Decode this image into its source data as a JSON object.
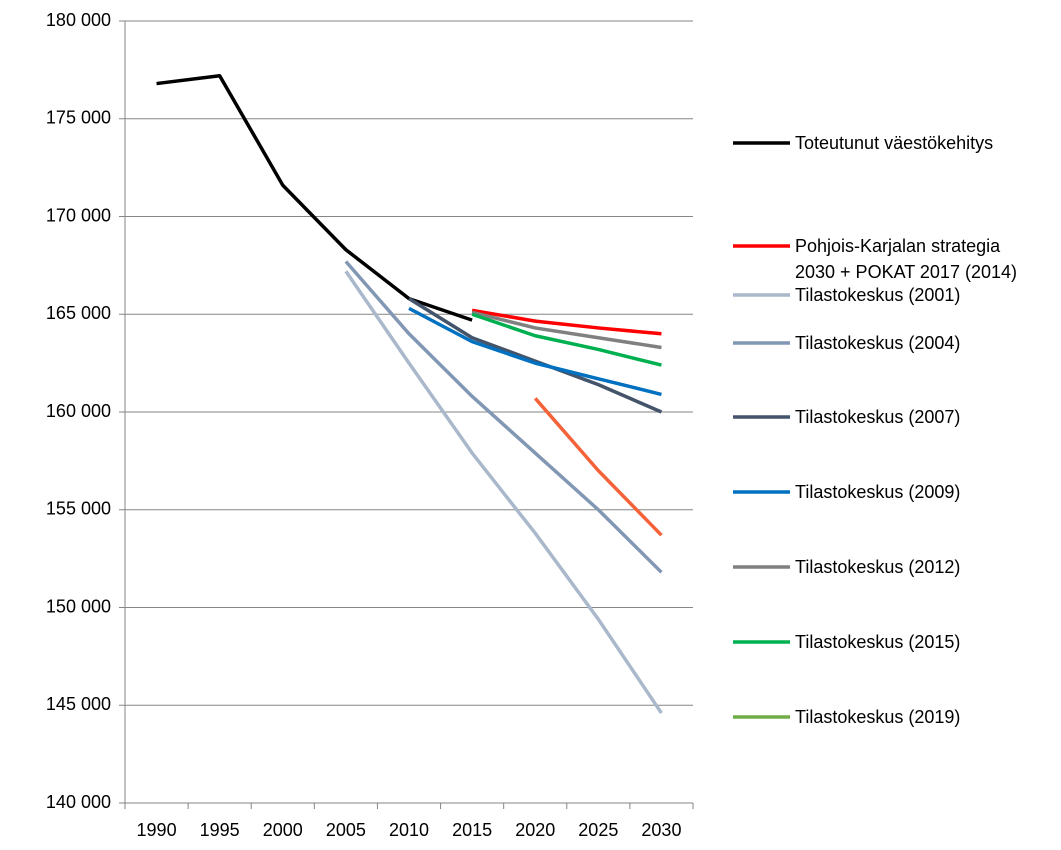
{
  "chart_data": {
    "type": "line",
    "categories": [
      "1990",
      "1995",
      "2000",
      "2005",
      "2010",
      "2015",
      "2020",
      "2025",
      "2030"
    ],
    "ylim": [
      140000,
      180000
    ],
    "yticks": [
      {
        "value": 140000,
        "label": "140 000"
      },
      {
        "value": 145000,
        "label": "145 000"
      },
      {
        "value": 150000,
        "label": "150 000"
      },
      {
        "value": 155000,
        "label": "155 000"
      },
      {
        "value": 160000,
        "label": "160 000"
      },
      {
        "value": 165000,
        "label": "165 000"
      },
      {
        "value": 170000,
        "label": "170 000"
      },
      {
        "value": 175000,
        "label": "175 000"
      },
      {
        "value": 180000,
        "label": "180 000"
      }
    ],
    "grid": true,
    "legend": "right",
    "series": [
      {
        "name": "Toteutunut väestökehitys",
        "color": "#000000",
        "values": [
          176800,
          177200,
          171600,
          168300,
          165800,
          164700,
          null,
          null,
          null
        ]
      },
      {
        "name": "Pohjois-Karjalan strategia\n2030 + POKAT 2017 (2014)",
        "color": "#ff0000",
        "values": [
          null,
          null,
          null,
          null,
          null,
          165200,
          164650,
          164300,
          164000
        ]
      },
      {
        "name": "Tilastokeskus (2001)",
        "color": "#a9b8cb",
        "values": [
          null,
          null,
          null,
          167200,
          162500,
          157900,
          153800,
          149400,
          144600
        ]
      },
      {
        "name": "Tilastokeskus (2004)",
        "color": "#8297b3",
        "values": [
          null,
          null,
          null,
          167700,
          164000,
          160800,
          157900,
          155000,
          151800
        ]
      },
      {
        "name": "Tilastokeskus (2007)",
        "color": "#44546a",
        "values": [
          null,
          null,
          null,
          null,
          165800,
          163800,
          162600,
          161400,
          160000
        ]
      },
      {
        "name": "Tilastokeskus (2009)",
        "color": "#0070c0",
        "values": [
          null,
          null,
          null,
          null,
          165300,
          163600,
          162500,
          161700,
          160900
        ]
      },
      {
        "name": "Tilastokeskus (2012)",
        "color": "#808080",
        "values": [
          null,
          null,
          null,
          null,
          null,
          165100,
          164300,
          163800,
          163300
        ]
      },
      {
        "name": "Tilastokeskus (2015)",
        "color": "#00b050",
        "values": [
          null,
          null,
          null,
          null,
          null,
          165000,
          163900,
          163200,
          162400
        ]
      },
      {
        "name": "Tilastokeskus (2019)",
        "color": "#70ad47",
        "line_color": "#f4623a",
        "values": [
          null,
          null,
          null,
          null,
          null,
          null,
          160700,
          157000,
          153700
        ]
      }
    ]
  }
}
